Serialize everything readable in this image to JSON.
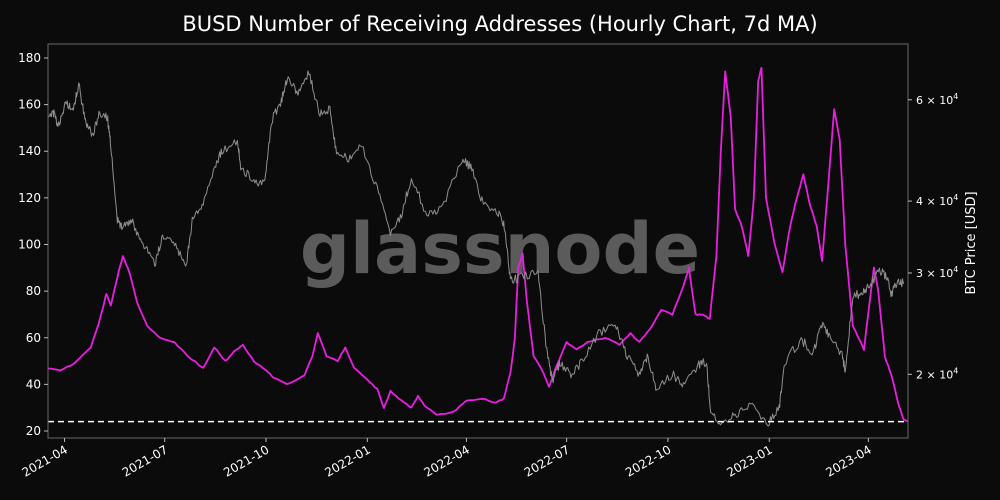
{
  "chart_data": {
    "type": "line",
    "title": "BUSD Number of Receiving Addresses (Hourly Chart, 7d MA)",
    "watermark": "glassnode",
    "background_color": "#0b0b0b",
    "y_left": {
      "lim": [
        17,
        186
      ],
      "ticks": [
        20,
        40,
        60,
        80,
        100,
        120,
        140,
        160,
        180
      ]
    },
    "y_right": {
      "label": "BTC Price [USD]",
      "scale": "log",
      "lim": [
        15500,
        75000
      ],
      "ticks": [
        20000,
        30000,
        40000,
        60000
      ],
      "tick_labels": [
        "2 × 10^4",
        "3 × 10^4",
        "4 × 10^4",
        "6 × 10^4"
      ]
    },
    "x": {
      "lim": [
        "2021-03-17",
        "2023-05-07"
      ],
      "ticks": [
        "2021-04-01",
        "2021-07-01",
        "2021-10-01",
        "2022-01-01",
        "2022-04-01",
        "2022-07-01",
        "2022-10-01",
        "2023-01-01",
        "2023-04-01"
      ],
      "tick_labels": [
        "2021-04",
        "2021-07",
        "2021-10",
        "2022-01",
        "2022-04",
        "2022-07",
        "2022-10",
        "2023-01",
        "2023-04"
      ]
    },
    "reference_line": {
      "value": 24,
      "axis": "left",
      "style": "dashed",
      "color": "#ffffff"
    },
    "series": [
      {
        "axis": "left",
        "color": "#e81ee0",
        "points": [
          [
            "2021-03-17",
            47
          ],
          [
            "2021-03-28",
            46
          ],
          [
            "2021-04-10",
            49
          ],
          [
            "2021-04-25",
            56
          ],
          [
            "2021-05-02",
            66
          ],
          [
            "2021-05-06",
            73
          ],
          [
            "2021-05-09",
            79
          ],
          [
            "2021-05-13",
            74
          ],
          [
            "2021-05-19",
            86
          ],
          [
            "2021-05-24",
            95
          ],
          [
            "2021-05-30",
            88
          ],
          [
            "2021-06-06",
            75
          ],
          [
            "2021-06-15",
            65
          ],
          [
            "2021-06-27",
            60
          ],
          [
            "2021-07-10",
            58
          ],
          [
            "2021-07-22",
            52
          ],
          [
            "2021-08-05",
            47
          ],
          [
            "2021-08-15",
            56
          ],
          [
            "2021-08-25",
            50
          ],
          [
            "2021-09-02",
            54
          ],
          [
            "2021-09-10",
            57
          ],
          [
            "2021-09-20",
            50
          ],
          [
            "2021-10-01",
            46
          ],
          [
            "2021-10-08",
            43
          ],
          [
            "2021-10-20",
            40
          ],
          [
            "2021-11-05",
            44
          ],
          [
            "2021-11-12",
            52
          ],
          [
            "2021-11-17",
            62
          ],
          [
            "2021-11-25",
            52
          ],
          [
            "2021-12-05",
            50
          ],
          [
            "2021-12-12",
            56
          ],
          [
            "2021-12-20",
            47
          ],
          [
            "2022-01-01",
            42
          ],
          [
            "2022-01-10",
            38
          ],
          [
            "2022-01-16",
            30
          ],
          [
            "2022-01-22",
            37
          ],
          [
            "2022-02-01",
            33
          ],
          [
            "2022-02-10",
            30
          ],
          [
            "2022-02-16",
            35
          ],
          [
            "2022-02-22",
            31
          ],
          [
            "2022-03-05",
            27
          ],
          [
            "2022-03-20",
            28
          ],
          [
            "2022-04-01",
            33
          ],
          [
            "2022-04-15",
            34
          ],
          [
            "2022-04-28",
            32
          ],
          [
            "2022-05-05",
            34
          ],
          [
            "2022-05-11",
            45
          ],
          [
            "2022-05-15",
            60
          ],
          [
            "2022-05-18",
            90
          ],
          [
            "2022-05-22",
            96
          ],
          [
            "2022-05-26",
            75
          ],
          [
            "2022-06-01",
            52
          ],
          [
            "2022-06-10",
            45
          ],
          [
            "2022-06-15",
            39
          ],
          [
            "2022-06-22",
            48
          ],
          [
            "2022-07-01",
            58
          ],
          [
            "2022-07-10",
            55
          ],
          [
            "2022-07-20",
            58
          ],
          [
            "2022-08-05",
            60
          ],
          [
            "2022-08-18",
            57
          ],
          [
            "2022-08-28",
            62
          ],
          [
            "2022-09-05",
            58
          ],
          [
            "2022-09-15",
            64
          ],
          [
            "2022-09-25",
            72
          ],
          [
            "2022-10-05",
            70
          ],
          [
            "2022-10-15",
            82
          ],
          [
            "2022-10-20",
            90
          ],
          [
            "2022-10-26",
            70
          ],
          [
            "2022-11-02",
            70
          ],
          [
            "2022-11-08",
            68
          ],
          [
            "2022-11-14",
            95
          ],
          [
            "2022-11-18",
            140
          ],
          [
            "2022-11-22",
            174
          ],
          [
            "2022-11-27",
            155
          ],
          [
            "2022-12-01",
            115
          ],
          [
            "2022-12-07",
            108
          ],
          [
            "2022-12-13",
            95
          ],
          [
            "2022-12-18",
            120
          ],
          [
            "2022-12-22",
            170
          ],
          [
            "2022-12-25",
            176
          ],
          [
            "2022-12-29",
            120
          ],
          [
            "2023-01-06",
            100
          ],
          [
            "2023-01-13",
            88
          ],
          [
            "2023-01-20",
            108
          ],
          [
            "2023-01-26",
            120
          ],
          [
            "2023-02-01",
            130
          ],
          [
            "2023-02-07",
            117
          ],
          [
            "2023-02-13",
            108
          ],
          [
            "2023-02-18",
            93
          ],
          [
            "2023-02-24",
            128
          ],
          [
            "2023-03-01",
            158
          ],
          [
            "2023-03-06",
            145
          ],
          [
            "2023-03-11",
            100
          ],
          [
            "2023-03-18",
            65
          ],
          [
            "2023-03-28",
            55
          ],
          [
            "2023-04-06",
            90
          ],
          [
            "2023-04-10",
            80
          ],
          [
            "2023-04-16",
            52
          ],
          [
            "2023-04-22",
            44
          ],
          [
            "2023-04-28",
            32
          ],
          [
            "2023-05-03",
            25
          ],
          [
            "2023-05-07",
            24
          ]
        ]
      },
      {
        "axis": "right",
        "color": "#8f8f8f",
        "points": [
          [
            "2021-03-17",
            55000
          ],
          [
            "2021-03-22",
            57000
          ],
          [
            "2021-03-26",
            54000
          ],
          [
            "2021-04-02",
            59000
          ],
          [
            "2021-04-09",
            58000
          ],
          [
            "2021-04-14",
            63500
          ],
          [
            "2021-04-20",
            55000
          ],
          [
            "2021-04-26",
            52000
          ],
          [
            "2021-05-03",
            57000
          ],
          [
            "2021-05-10",
            56000
          ],
          [
            "2021-05-13",
            50000
          ],
          [
            "2021-05-19",
            37000
          ],
          [
            "2021-05-24",
            36000
          ],
          [
            "2021-06-01",
            37000
          ],
          [
            "2021-06-10",
            34000
          ],
          [
            "2021-06-22",
            31000
          ],
          [
            "2021-06-29",
            35000
          ],
          [
            "2021-07-10",
            34000
          ],
          [
            "2021-07-20",
            30500
          ],
          [
            "2021-07-26",
            37000
          ],
          [
            "2021-08-05",
            40000
          ],
          [
            "2021-08-15",
            46000
          ],
          [
            "2021-08-22",
            49000
          ],
          [
            "2021-09-05",
            51000
          ],
          [
            "2021-09-08",
            46000
          ],
          [
            "2021-09-20",
            43000
          ],
          [
            "2021-09-30",
            43500
          ],
          [
            "2021-10-06",
            55000
          ],
          [
            "2021-10-15",
            60000
          ],
          [
            "2021-10-20",
            65000
          ],
          [
            "2021-10-30",
            62000
          ],
          [
            "2021-11-09",
            67000
          ],
          [
            "2021-11-18",
            57000
          ],
          [
            "2021-11-28",
            58000
          ],
          [
            "2021-12-04",
            48000
          ],
          [
            "2021-12-15",
            47500
          ],
          [
            "2021-12-27",
            50000
          ],
          [
            "2022-01-10",
            42000
          ],
          [
            "2022-01-22",
            35000
          ],
          [
            "2022-02-01",
            38000
          ],
          [
            "2022-02-10",
            44000
          ],
          [
            "2022-02-24",
            38000
          ],
          [
            "2022-03-10",
            39000
          ],
          [
            "2022-03-28",
            47000
          ],
          [
            "2022-04-05",
            46000
          ],
          [
            "2022-04-15",
            40000
          ],
          [
            "2022-04-30",
            38000
          ],
          [
            "2022-05-06",
            36000
          ],
          [
            "2022-05-11",
            29000
          ],
          [
            "2022-05-20",
            29500
          ],
          [
            "2022-06-05",
            30000
          ],
          [
            "2022-06-13",
            22000
          ],
          [
            "2022-06-18",
            19500
          ],
          [
            "2022-06-25",
            21000
          ],
          [
            "2022-07-05",
            20000
          ],
          [
            "2022-07-15",
            21000
          ],
          [
            "2022-07-30",
            23500
          ],
          [
            "2022-08-14",
            24500
          ],
          [
            "2022-08-25",
            21500
          ],
          [
            "2022-09-05",
            20000
          ],
          [
            "2022-09-13",
            21500
          ],
          [
            "2022-09-20",
            19000
          ],
          [
            "2022-10-05",
            20000
          ],
          [
            "2022-10-15",
            19200
          ],
          [
            "2022-10-29",
            20800
          ],
          [
            "2022-11-05",
            21000
          ],
          [
            "2022-11-09",
            17000
          ],
          [
            "2022-11-20",
            16300
          ],
          [
            "2022-12-01",
            17000
          ],
          [
            "2022-12-15",
            17600
          ],
          [
            "2022-12-31",
            16500
          ],
          [
            "2023-01-10",
            17400
          ],
          [
            "2023-01-15",
            21000
          ],
          [
            "2023-01-30",
            23000
          ],
          [
            "2023-02-10",
            21800
          ],
          [
            "2023-02-17",
            24500
          ],
          [
            "2023-02-25",
            23200
          ],
          [
            "2023-03-08",
            21700
          ],
          [
            "2023-03-11",
            20200
          ],
          [
            "2023-03-18",
            27500
          ],
          [
            "2023-03-25",
            27500
          ],
          [
            "2023-04-01",
            28400
          ],
          [
            "2023-04-11",
            30300
          ],
          [
            "2023-04-18",
            29500
          ],
          [
            "2023-04-22",
            27500
          ],
          [
            "2023-04-28",
            29300
          ],
          [
            "2023-05-03",
            28700
          ]
        ]
      }
    ]
  }
}
